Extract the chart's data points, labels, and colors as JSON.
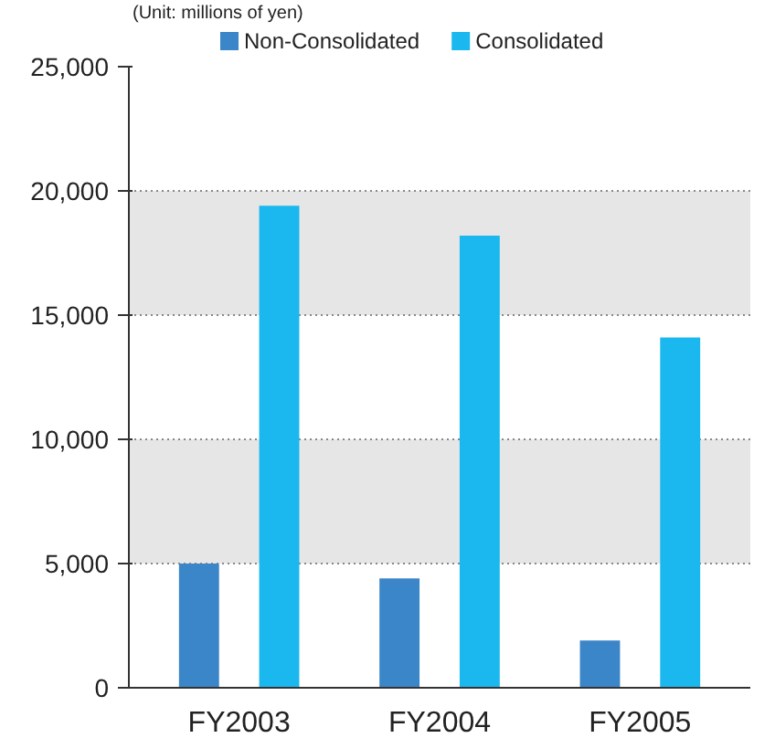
{
  "chart_data": {
    "type": "bar",
    "annotations": [
      "(Unit: millions of yen)"
    ],
    "categories": [
      "FY2003",
      "FY2004",
      "FY2005"
    ],
    "series": [
      {
        "name": "Non-Consolidated",
        "color": "#3a86c8",
        "values": [
          5000,
          4400,
          1900
        ]
      },
      {
        "name": "Consolidated",
        "color": "#1ab8ee",
        "values": [
          19400,
          18200,
          14100
        ]
      }
    ],
    "ylim": [
      0,
      25000
    ],
    "yticks": [
      {
        "value": 0,
        "label": "0"
      },
      {
        "value": 5000,
        "label": "5,000"
      },
      {
        "value": 10000,
        "label": "10,000"
      },
      {
        "value": 15000,
        "label": "15,000"
      },
      {
        "value": 20000,
        "label": "20,000"
      },
      {
        "value": 25000,
        "label": "25,000"
      }
    ],
    "grid": "y",
    "legend": "top"
  }
}
